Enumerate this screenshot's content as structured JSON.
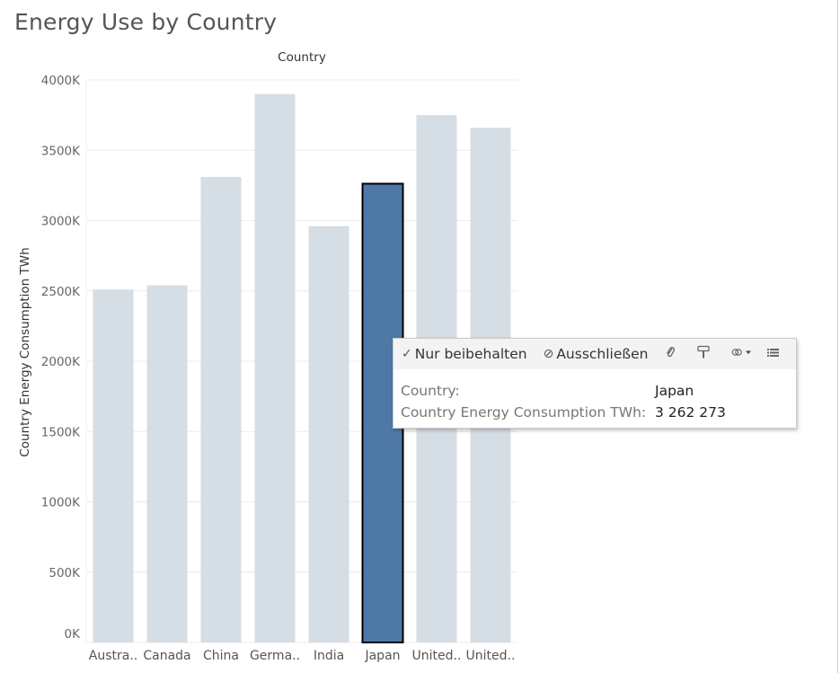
{
  "page": {
    "title": "Energy Use by Country"
  },
  "chart_data": {
    "type": "bar",
    "title": "Energy Use by Country",
    "header": "Country",
    "xlabel": "Country",
    "ylabel": "Country Energy Consumption TWh",
    "categories": [
      "Austra..",
      "Canada",
      "China",
      "Germa..",
      "India",
      "Japan",
      "United..",
      "United.."
    ],
    "values": [
      2510000,
      2540000,
      3310000,
      3900000,
      2960000,
      3262273,
      3750000,
      3660000
    ],
    "ylim": [
      0,
      4000000
    ],
    "yticks": [
      0,
      500000,
      1000000,
      1500000,
      2000000,
      2500000,
      3000000,
      3500000,
      4000000
    ],
    "ytick_labels": [
      "0K",
      "500K",
      "1000K",
      "1500K",
      "2000K",
      "2500K",
      "3000K",
      "3500K",
      "4000K"
    ],
    "highlighted_index": 5,
    "grid": true,
    "colors": {
      "bar": "#d5dde5",
      "highlight": "#4e79a7",
      "highlight_outline": "#000000",
      "grid": "#ececec"
    }
  },
  "tooltip": {
    "keep_only": "Nur beibehalten",
    "keep_only_glyph": "✓",
    "exclude": "Ausschließen",
    "exclude_glyph": "⊘",
    "icons": [
      "paperclip-icon",
      "format-brush-icon",
      "group-members-icon",
      "view-data-icon"
    ],
    "rows": [
      {
        "field": "Country:",
        "value": "Japan"
      },
      {
        "field": "Country Energy Consumption TWh:",
        "value": "3 262 273"
      }
    ]
  }
}
